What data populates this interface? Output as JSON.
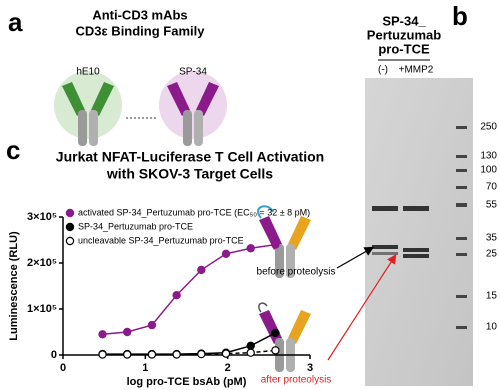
{
  "panel_a": {
    "label": "a",
    "title": "Anti-CD3 mAbs",
    "subtitle": "CD3ε Binding Family",
    "antibodies": [
      "hE10",
      "SP-34"
    ]
  },
  "panel_b": {
    "label": "b",
    "title": [
      "SP-34_",
      "Pertuzumab",
      "pro-TCE"
    ],
    "lanes": [
      "(-)",
      "+MMP2"
    ],
    "ladder": [
      250,
      130,
      100,
      70,
      55,
      35,
      25,
      15,
      10
    ],
    "annotations": [
      "before proteolysis",
      "after proteolysis"
    ]
  },
  "panel_c": {
    "label": "c"
  },
  "chart_data": {
    "type": "line",
    "title": [
      "Jurkat NFAT-Luciferase T Cell Activation",
      "with SKOV-3 Target Cells"
    ],
    "xlabel": "log pro-TCE bsAb (pM)",
    "ylabel": "Luminescence (RLU)",
    "x": [
      0.48,
      0.78,
      1.08,
      1.38,
      1.68,
      1.98,
      2.28,
      2.58
    ],
    "series": [
      {
        "name": "activated SP-34_Pertuzumab pro-TCE (EC₅₀ = 32 ± 8 pM)",
        "color": "#8b1a8b",
        "marker": "filled",
        "values": [
          45000,
          50000,
          65000,
          130000,
          185000,
          220000,
          232000,
          240000
        ]
      },
      {
        "name": "SP-34_Pertuzumab pro-TCE",
        "color": "#000000",
        "marker": "filled",
        "values": [
          2000,
          2000,
          2000,
          2000,
          3000,
          5000,
          20000,
          48000
        ]
      },
      {
        "name": "uncleavable SP-34_Pertuzumab pro-TCE",
        "color": "#000000",
        "marker": "open",
        "dashed": true,
        "values": [
          1000,
          1000,
          1000,
          1000,
          2000,
          3000,
          5000,
          10000
        ]
      }
    ],
    "xlim": [
      0,
      3
    ],
    "xticks": [
      0,
      1,
      2,
      3
    ],
    "ylim": [
      0,
      300000
    ],
    "yticks": [
      0,
      {
        "value": 100000,
        "label": "1×10⁵"
      },
      {
        "value": 200000,
        "label": "2×10⁵"
      },
      {
        "value": 300000,
        "label": "3×10⁵"
      }
    ]
  }
}
